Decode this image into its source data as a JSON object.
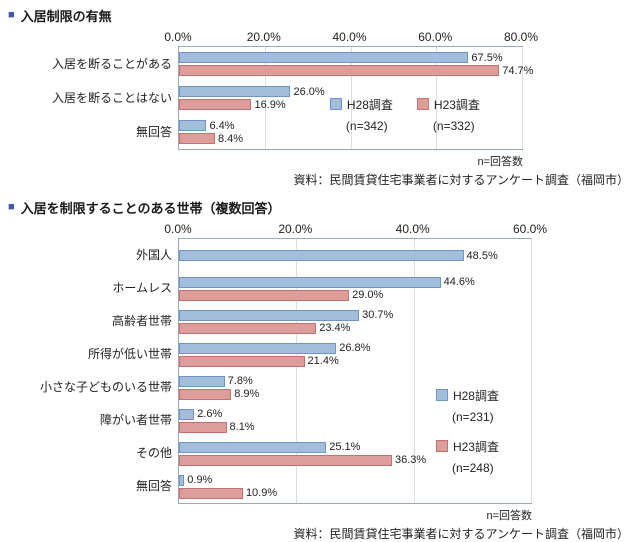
{
  "title_bullet": "■",
  "chart_data": [
    {
      "type": "bar",
      "orientation": "horizontal",
      "title": "入居制限の有無",
      "axis_max": 80,
      "axis_ticks": [
        "0.0%",
        "20.0%",
        "40.0%",
        "60.0%",
        "80.0%"
      ],
      "categories": [
        "入居を断ることがある",
        "入居を断ることはない",
        "無回答"
      ],
      "series": [
        {
          "name": "H28調査",
          "n": "(n=342)",
          "color": "#A3BEDC",
          "border": "#7195C2",
          "values": [
            67.5,
            26.0,
            6.4
          ]
        },
        {
          "name": "H23調査",
          "n": "(n=332)",
          "color": "#DD9D9B",
          "border": "#C4706C",
          "values": [
            74.7,
            16.9,
            8.4
          ]
        }
      ],
      "legend_layout": "horizontal",
      "legend_position": "inside-middle",
      "grid": true,
      "note": "n=回答数",
      "source": "資料：民間賃貸住宅事業者に対するアンケート調査（福岡市）"
    },
    {
      "type": "bar",
      "orientation": "horizontal",
      "title": "入居を制限することのある世帯（複数回答）",
      "axis_max": 60,
      "axis_ticks": [
        "0.0%",
        "20.0%",
        "40.0%",
        "60.0%"
      ],
      "categories": [
        "外国人",
        "ホームレス",
        "高齢者世帯",
        "所得が低い世帯",
        "小さな子どものいる世帯",
        "障がい者世帯",
        "その他",
        "無回答"
      ],
      "series": [
        {
          "name": "H28調査",
          "n": "(n=231)",
          "color": "#A3BEDC",
          "border": "#7195C2",
          "values": [
            48.5,
            44.6,
            30.7,
            26.8,
            7.8,
            2.6,
            25.1,
            0.9
          ]
        },
        {
          "name": "H23調査",
          "n": "(n=248)",
          "color": "#DD9D9B",
          "border": "#C4706C",
          "values": [
            null,
            29.0,
            23.4,
            21.4,
            8.9,
            8.1,
            36.3,
            10.9
          ]
        }
      ],
      "legend_layout": "vertical",
      "legend_position": "inside-right",
      "grid": true,
      "note": "n=回答数",
      "source": "資料：民間賃貸住宅事業者に対するアンケート調査（福岡市）"
    }
  ]
}
